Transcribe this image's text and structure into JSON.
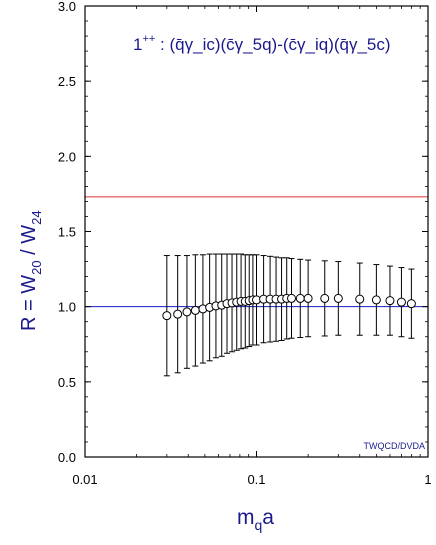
{
  "chart_data": {
    "type": "scatter",
    "title_main": "1",
    "title_sup": "++",
    "title_rest": " :  ",
    "title_formula": "(q̄γ_ic)(c̄γ_5q)-(c̄γ_iq)(q̄γ_5c)",
    "xlabel_base": "m",
    "xlabel_sub": "q",
    "xlabel_tail": "a",
    "ylabel_base": "R = W",
    "ylabel_sub1": "20",
    "ylabel_mid": " / W",
    "ylabel_sub2": "24",
    "xscale": "log",
    "xlim": [
      0.01,
      1
    ],
    "ylim": [
      0.0,
      3.0
    ],
    "x_ticks": [
      0.01,
      0.1,
      1
    ],
    "x_tick_labels": [
      "0.01",
      "0.1",
      "1"
    ],
    "y_ticks": [
      0.0,
      0.5,
      1.0,
      1.5,
      2.0,
      2.5,
      3.0
    ],
    "y_tick_labels": [
      "0.0",
      "0.5",
      "1.0",
      "1.5",
      "2.0",
      "2.5",
      "3.0"
    ],
    "grid": false,
    "watermark": "TWQCD/DVDA",
    "reference_lines": [
      {
        "y": 1.73,
        "color": "#e03030"
      },
      {
        "y": 1.0,
        "color": "#1a1acc"
      }
    ],
    "series": [
      {
        "marker": "open-circle",
        "color": "#000000",
        "x": [
          0.03,
          0.0347,
          0.0393,
          0.044,
          0.0487,
          0.0533,
          0.058,
          0.0627,
          0.0673,
          0.072,
          0.0767,
          0.0813,
          0.086,
          0.0907,
          0.0953,
          0.1,
          0.11,
          0.12,
          0.13,
          0.14,
          0.15,
          0.16,
          0.18,
          0.2,
          0.25,
          0.3,
          0.4,
          0.5,
          0.6,
          0.7,
          0.8
        ],
        "y": [
          0.94,
          0.95,
          0.965,
          0.975,
          0.985,
          0.995,
          1.005,
          1.01,
          1.02,
          1.025,
          1.03,
          1.035,
          1.035,
          1.04,
          1.045,
          1.045,
          1.05,
          1.05,
          1.05,
          1.05,
          1.055,
          1.055,
          1.055,
          1.055,
          1.055,
          1.055,
          1.05,
          1.045,
          1.04,
          1.03,
          1.02
        ],
        "yerr_upper": [
          0.4,
          0.39,
          0.375,
          0.37,
          0.36,
          0.355,
          0.345,
          0.34,
          0.33,
          0.325,
          0.32,
          0.315,
          0.31,
          0.305,
          0.3,
          0.3,
          0.29,
          0.285,
          0.28,
          0.275,
          0.27,
          0.265,
          0.26,
          0.255,
          0.25,
          0.245,
          0.24,
          0.235,
          0.23,
          0.23,
          0.23
        ],
        "yerr_lower": [
          0.4,
          0.39,
          0.375,
          0.37,
          0.36,
          0.355,
          0.345,
          0.34,
          0.33,
          0.325,
          0.32,
          0.315,
          0.31,
          0.305,
          0.3,
          0.3,
          0.29,
          0.285,
          0.28,
          0.275,
          0.27,
          0.265,
          0.26,
          0.255,
          0.25,
          0.245,
          0.24,
          0.235,
          0.23,
          0.23,
          0.23
        ]
      }
    ]
  }
}
